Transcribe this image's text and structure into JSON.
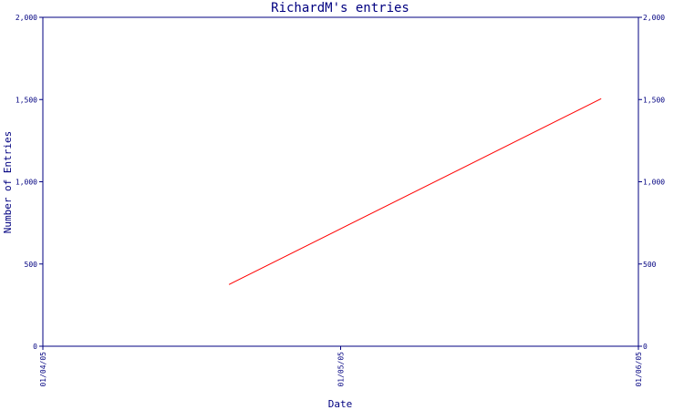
{
  "chart_data": {
    "type": "line",
    "title": "RichardM's entries",
    "xlabel": "Date",
    "ylabel": "Number of Entries",
    "x_ticks": [
      "01/04/05",
      "01/05/05",
      "01/06/05"
    ],
    "y_ticks": [
      "0",
      "500",
      "1,000",
      "1,500",
      "2,000"
    ],
    "ylim": [
      0,
      2000
    ],
    "xlim": [
      "2005-01-04",
      "2005-01-06"
    ],
    "right_axis": true,
    "grid": false,
    "series": [
      {
        "x": [
          "2005-01-04T15:00",
          "2005-01-05T21:00"
        ],
        "values": [
          375,
          1505
        ],
        "color": "#ff0000"
      }
    ]
  }
}
